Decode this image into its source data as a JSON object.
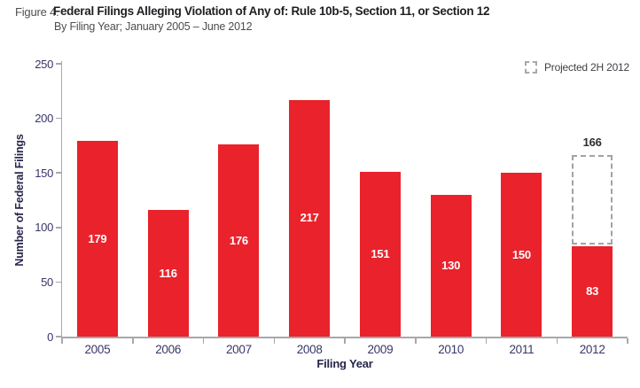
{
  "header": {
    "figure_label": "Figure 4.",
    "title": "Federal Filings Alleging Violation of Any of: Rule 10b-5, Section 11, or Section 12",
    "subtitle": "By Filing Year; January 2005 – June 2012"
  },
  "legend": {
    "projected_label": "Projected 2H 2012"
  },
  "chart_data": {
    "type": "bar",
    "categories": [
      "2005",
      "2006",
      "2007",
      "2008",
      "2009",
      "2010",
      "2011",
      "2012"
    ],
    "values": [
      179,
      116,
      176,
      217,
      151,
      130,
      150,
      83
    ],
    "projected": {
      "category": "2012",
      "actual": 83,
      "total": 166,
      "label": "166"
    },
    "title": "Federal Filings Alleging Violation of Any of: Rule 10b-5, Section 11, or Section 12",
    "subtitle": "By Filing Year; January 2005 – June 2012",
    "xlabel": "Filing Year",
    "ylabel": "Number of Federal Filings",
    "ylim": [
      0,
      250
    ],
    "yticks": [
      0,
      50,
      100,
      150,
      200,
      250
    ],
    "grid": false,
    "legend_position": "top-right",
    "legend_entries": [
      "Projected 2H 2012"
    ],
    "colors": {
      "bar": "#E9222B",
      "axis": "#A6A8AB",
      "projected_border": "#A2A3A6",
      "tick_label": "#37366A",
      "axis_title": "#26254A",
      "bar_value_label": "#FFFFFF",
      "projected_value_label": "#2B2B33"
    }
  }
}
